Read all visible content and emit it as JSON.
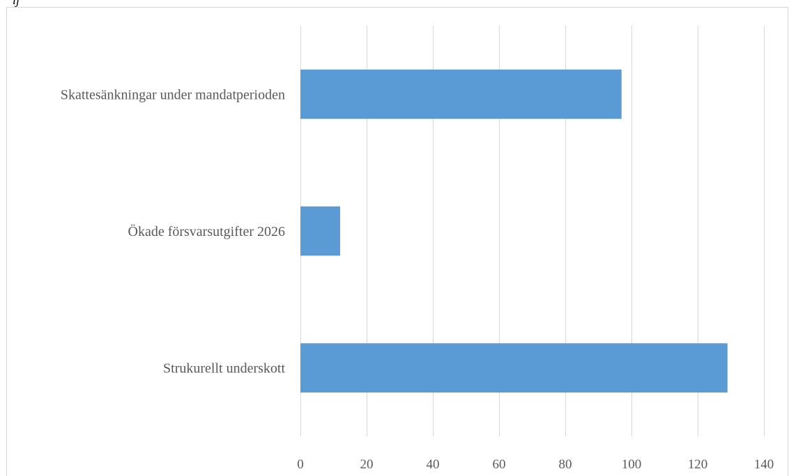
{
  "chart_data": {
    "type": "bar",
    "orientation": "horizontal",
    "categories": [
      "Skattesänkningar under mandatperioden",
      "Ökade försvarsutgifter 2026",
      "Strukurellt underskott"
    ],
    "values": [
      97,
      12,
      129
    ],
    "xlim": [
      0,
      140
    ],
    "xticks": [
      "0",
      "20",
      "40",
      "60",
      "80",
      "100",
      "120",
      "140"
    ],
    "tick_values": [
      0,
      20,
      40,
      60,
      80,
      100,
      120,
      140
    ],
    "grid": "vertical",
    "bar_color": "#5b9bd5",
    "grid_color": "#d9d9d9",
    "legend": "none"
  },
  "page": {
    "top_glyph": "ij"
  }
}
